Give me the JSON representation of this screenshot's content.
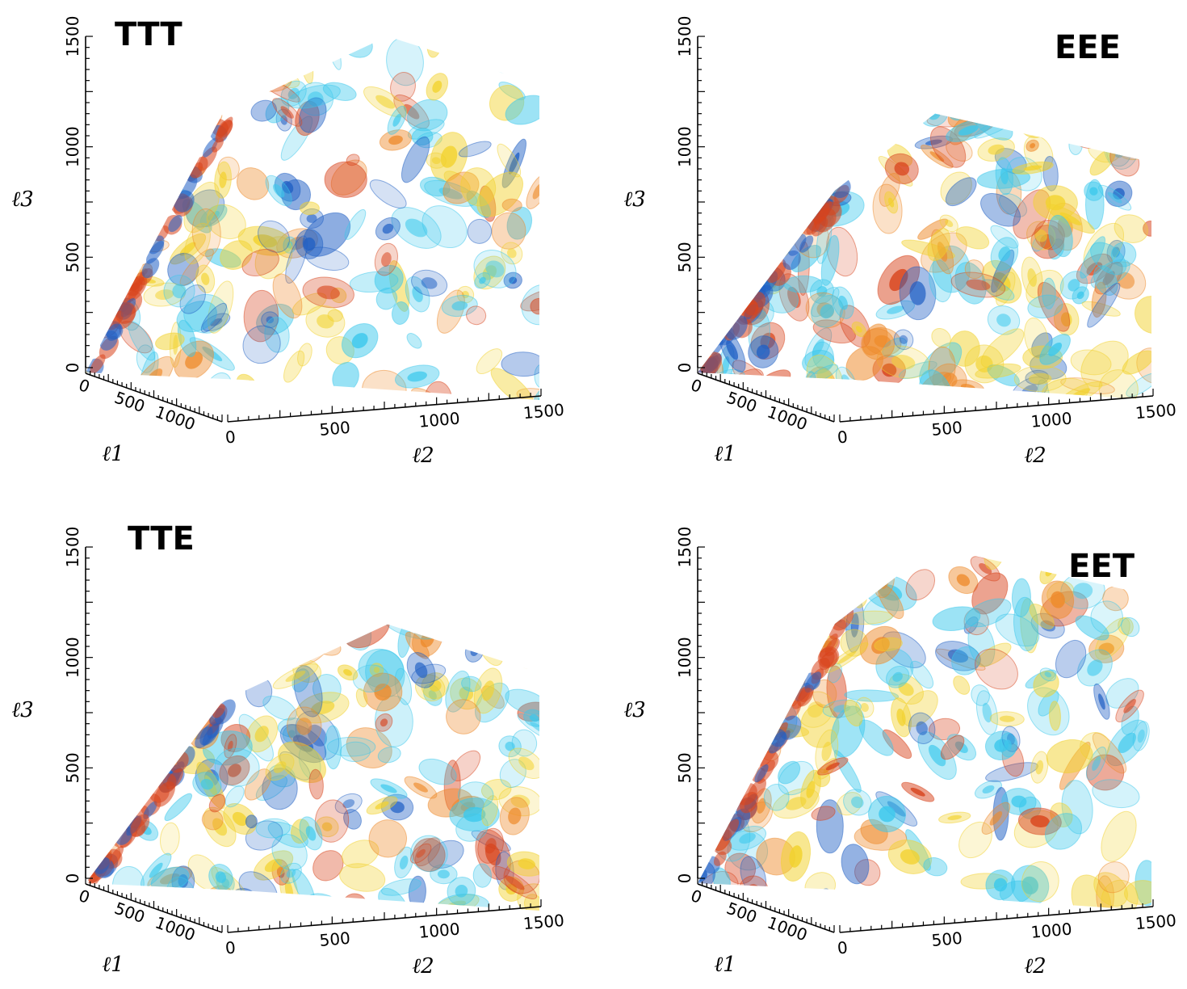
{
  "chart_data": [
    {
      "type": "volume-isosurface",
      "title": "TTT",
      "xlabel": "ℓ1",
      "ylabel": "ℓ2",
      "zlabel": "ℓ3",
      "x_ticks": [
        "0",
        "500",
        "1000"
      ],
      "y_ticks": [
        "0",
        "500",
        "1000",
        "1500"
      ],
      "z_ticks": [
        "0",
        "500",
        "1000",
        "1500"
      ],
      "xlim": [
        0,
        1500
      ],
      "ylim": [
        0,
        1500
      ],
      "zlim": [
        0,
        1500
      ],
      "volume_top_l3": 1500
    },
    {
      "type": "volume-isosurface",
      "title": "EEE",
      "xlabel": "ℓ1",
      "ylabel": "ℓ2",
      "zlabel": "ℓ3",
      "x_ticks": [
        "0",
        "500",
        "1000"
      ],
      "y_ticks": [
        "0",
        "500",
        "1000",
        "1500"
      ],
      "z_ticks": [
        "0",
        "500",
        "1000",
        "1500"
      ],
      "xlim": [
        0,
        1500
      ],
      "ylim": [
        0,
        1500
      ],
      "zlim": [
        0,
        1500
      ],
      "volume_top_l3": 1150
    },
    {
      "type": "volume-isosurface",
      "title": "TTE",
      "xlabel": "ℓ1",
      "ylabel": "ℓ2",
      "zlabel": "ℓ3",
      "x_ticks": [
        "0",
        "500",
        "1000"
      ],
      "y_ticks": [
        "0",
        "500",
        "1000",
        "1500"
      ],
      "z_ticks": [
        "0",
        "500",
        "1000",
        "1500"
      ],
      "xlim": [
        0,
        1500
      ],
      "ylim": [
        0,
        1500
      ],
      "zlim": [
        0,
        1500
      ],
      "volume_top_l3": 1150
    },
    {
      "type": "volume-isosurface",
      "title": "EET",
      "xlabel": "ℓ1",
      "ylabel": "ℓ2",
      "zlabel": "ℓ3",
      "x_ticks": [
        "0",
        "500",
        "1000"
      ],
      "y_ticks": [
        "0",
        "500",
        "1000",
        "1500"
      ],
      "z_ticks": [
        "0",
        "500",
        "1000",
        "1500"
      ],
      "xlim": [
        0,
        1500
      ],
      "ylim": [
        0,
        1500
      ],
      "zlim": [
        0,
        1500
      ],
      "volume_top_l3": 1500
    }
  ],
  "colors": {
    "dark_blue": "#1f5fc4",
    "cyan": "#3cc8ec",
    "yellow": "#f2d22e",
    "orange": "#ee8a2a",
    "red": "#d8431c"
  }
}
